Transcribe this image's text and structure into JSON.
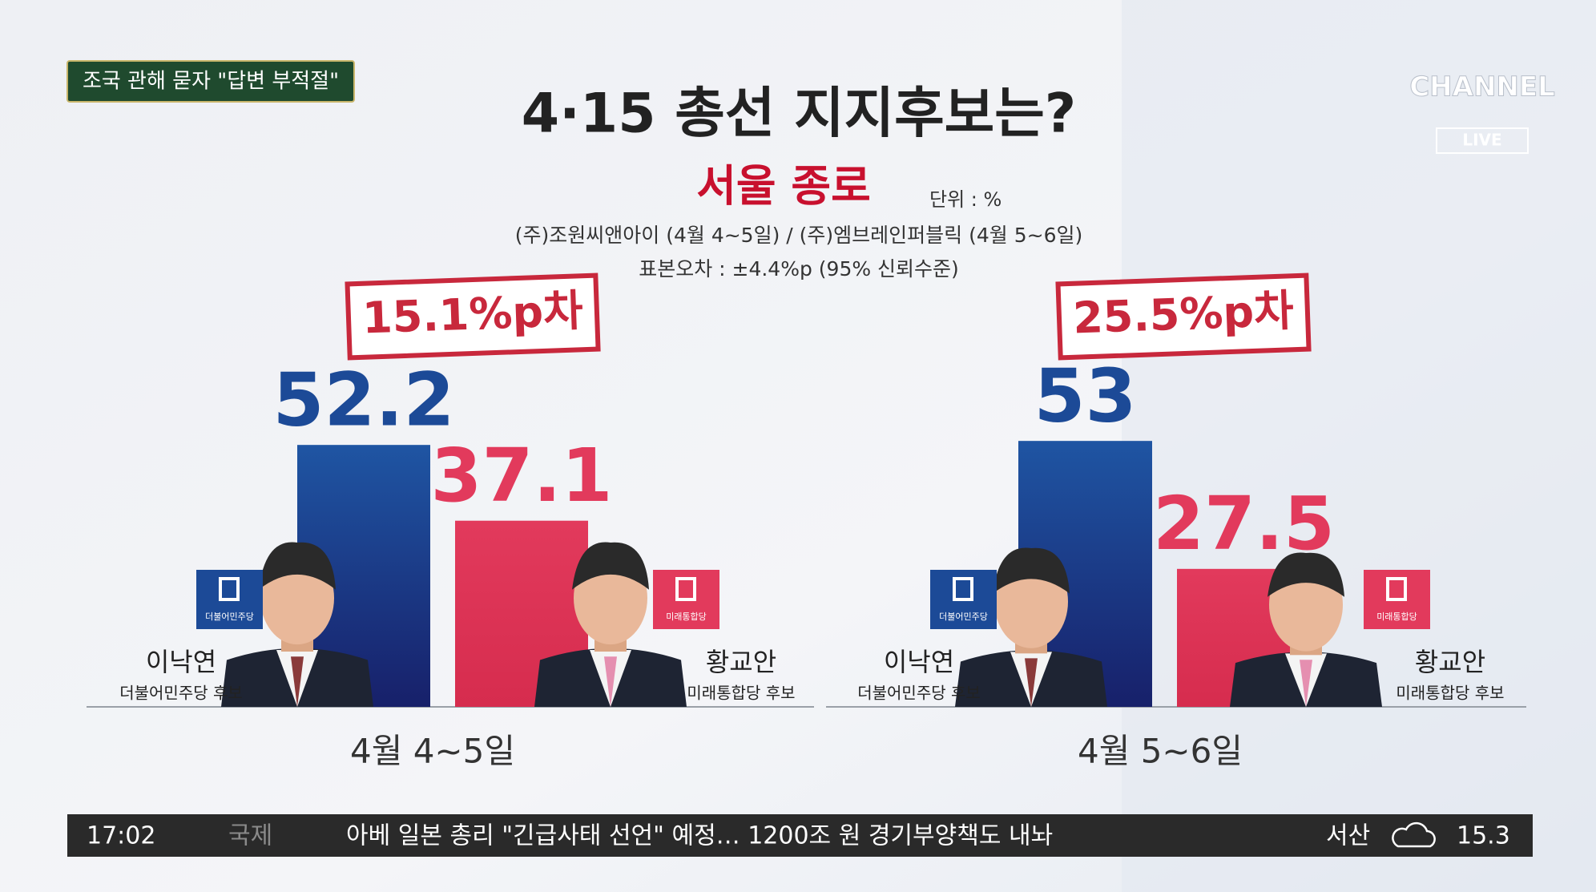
{
  "banner": "조국 관해 묻자 \"답변 부적절\"",
  "logo": {
    "name": "CHANNEL",
    "live": "LIVE"
  },
  "header": {
    "title": "4·15 총선 지지후보는?",
    "subtitle": "서울 종로",
    "unit": "단위 : %",
    "source": "(주)조원씨앤아이 (4월 4~5일) / (주)엠브레인퍼블릭 (4월 5~6일)",
    "note": "표본오차 : ±4.4%p (95% 신뢰수준)"
  },
  "chart_data": [
    {
      "type": "bar",
      "annotation": "15.1%p차",
      "x_label": "4월 4~5일",
      "categories": [
        "이낙연",
        "황교안"
      ],
      "captions": [
        "더불어민주당 후보",
        "미래통합당 후보"
      ],
      "party_logos": [
        "더불어민주당",
        "미래통합당"
      ],
      "values": [
        52.2,
        37.1
      ],
      "colors": [
        "#1c4a97",
        "#e23a5c"
      ]
    },
    {
      "type": "bar",
      "annotation": "25.5%p차",
      "x_label": "4월 5~6일",
      "categories": [
        "이낙연",
        "황교안"
      ],
      "captions": [
        "더불어민주당 후보",
        "미래통합당 후보"
      ],
      "party_logos": [
        "더불어민주당",
        "미래통합당"
      ],
      "values": [
        53,
        27.5
      ],
      "colors": [
        "#1c4a97",
        "#e23a5c"
      ]
    }
  ],
  "ticker": {
    "time": "17:02",
    "section": "국제",
    "headline": "아베 일본 총리 \"긴급사태 선언\" 예정… 1200조 원 경기부양책도 내놔",
    "city": "서산",
    "temperature": 15.3
  }
}
